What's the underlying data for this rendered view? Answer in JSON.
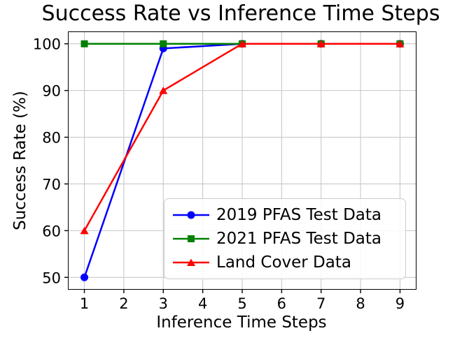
{
  "chart_data": {
    "type": "line",
    "title": "Success Rate vs Inference Time Steps",
    "xlabel": "Inference Time Steps",
    "ylabel": "Success Rate (%)",
    "x": [
      1,
      3,
      5,
      7,
      9
    ],
    "series": [
      {
        "name": "2019 PFAS Test Data",
        "color": "#0000ff",
        "marker": "circle",
        "values": [
          50,
          99,
          100,
          100,
          100
        ]
      },
      {
        "name": "2021 PFAS Test Data",
        "color": "#008000",
        "marker": "square",
        "values": [
          100,
          100,
          100,
          100,
          100
        ]
      },
      {
        "name": "Land Cover Data",
        "color": "#ff0000",
        "marker": "triangle",
        "values": [
          60,
          90,
          100,
          100,
          100
        ]
      }
    ],
    "xticks": [
      1,
      2,
      3,
      4,
      5,
      6,
      7,
      8,
      9
    ],
    "yticks": [
      50,
      60,
      70,
      80,
      90,
      100
    ],
    "xlim": [
      0.6,
      9.4
    ],
    "ylim": [
      47.5,
      102.5
    ],
    "grid": true,
    "grid_color": "#c8c8c8",
    "axis_color": "#000000",
    "legend_position": "lower-right-inside"
  }
}
